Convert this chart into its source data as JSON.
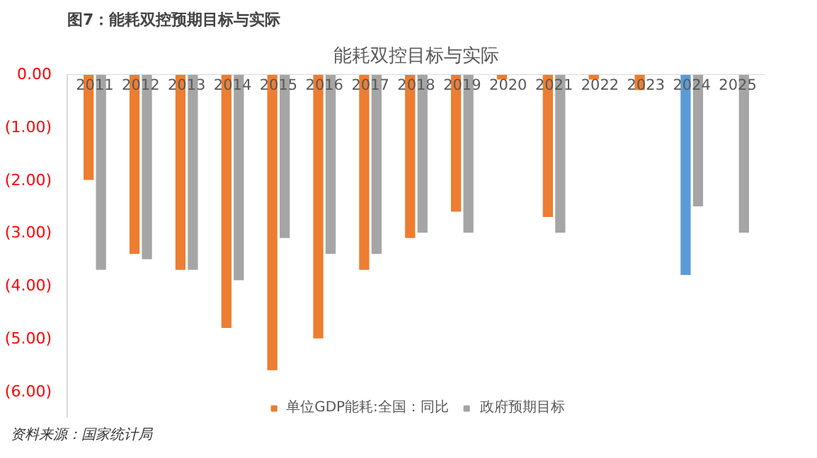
{
  "chart_data": {
    "type": "bar",
    "title": "能耗双控目标与实际",
    "subtitle": "图7：能耗双控预期目标与实际",
    "categories": [
      "2011",
      "2012",
      "2013",
      "2014",
      "2015",
      "2016",
      "2017",
      "2018",
      "2019",
      "2020",
      "2021",
      "2022",
      "2023",
      "2024",
      "2025"
    ],
    "series": [
      {
        "name": "单位GDP能耗:全国：同比",
        "color": "#ed7d31",
        "colors": [
          "#ed7d31",
          "#ed7d31",
          "#ed7d31",
          "#ed7d31",
          "#ed7d31",
          "#ed7d31",
          "#ed7d31",
          "#ed7d31",
          "#ed7d31",
          "#ed7d31",
          "#ed7d31",
          "#ed7d31",
          "#ed7d31",
          "#5b9bd5",
          "#ed7d31"
        ],
        "values": [
          -2.0,
          -3.4,
          -3.7,
          -4.8,
          -5.6,
          -5.0,
          -3.7,
          -3.1,
          -2.6,
          -0.1,
          -2.7,
          -0.1,
          -0.3,
          -3.8,
          null
        ]
      },
      {
        "name": "政府预期目标",
        "color": "#a5a5a5",
        "values": [
          -3.7,
          -3.5,
          -3.7,
          -3.9,
          -3.1,
          -3.4,
          -3.4,
          -3.0,
          -3.0,
          null,
          -3.0,
          null,
          null,
          -2.5,
          -3.0
        ]
      }
    ],
    "ylim": [
      -6.5,
      0
    ],
    "yticks": [
      {
        "value": 0,
        "label": "0.00"
      },
      {
        "value": -1,
        "label": "(1.00)"
      },
      {
        "value": -2,
        "label": "(2.00)"
      },
      {
        "value": -3,
        "label": "(3.00)"
      },
      {
        "value": -4,
        "label": "(4.00)"
      },
      {
        "value": -5,
        "label": "(5.00)"
      },
      {
        "value": -6,
        "label": "(6.00)"
      }
    ],
    "grid": false,
    "legend": "bottom",
    "annotations": [
      "资料来源：国家统计局"
    ]
  }
}
